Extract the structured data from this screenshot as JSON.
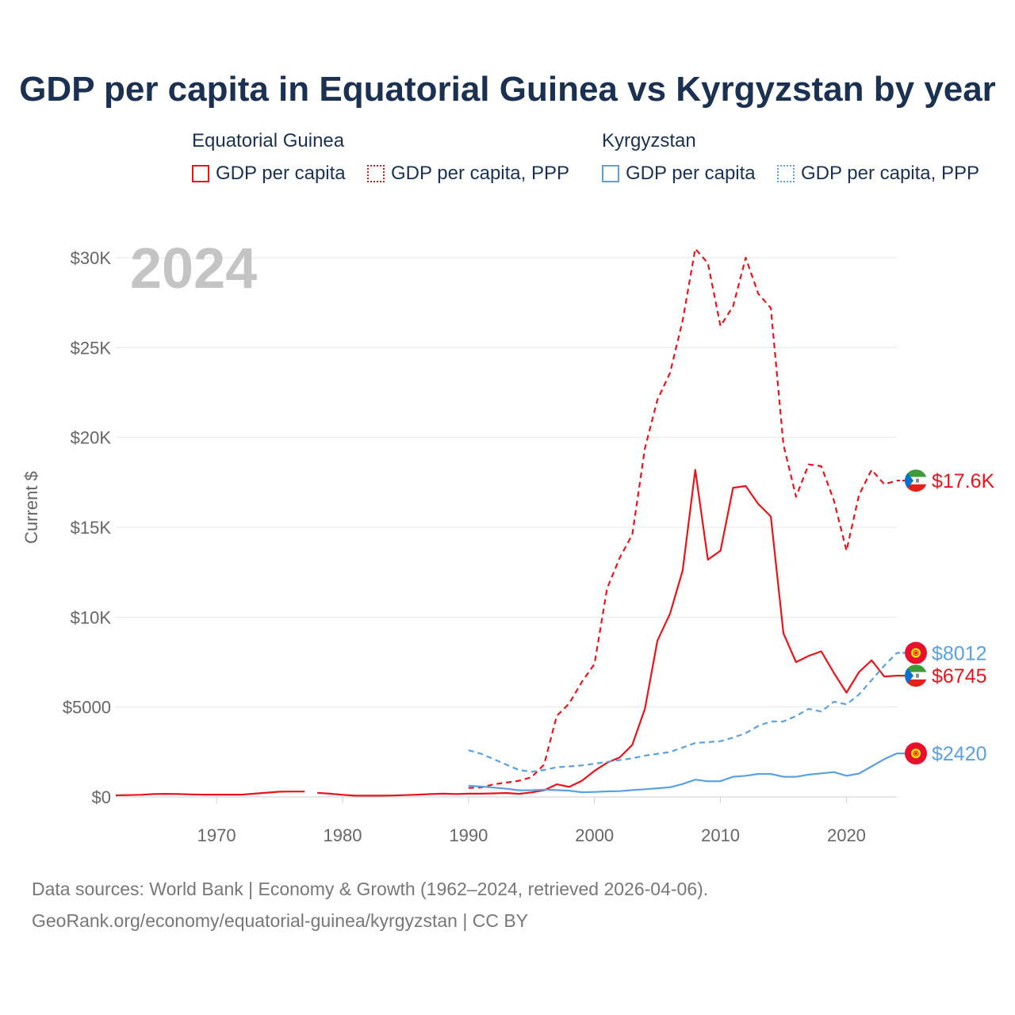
{
  "title": "GDP per capita in Equatorial Guinea vs Kyrgyzstan by year",
  "legend": {
    "groups": [
      {
        "country": "Equatorial Guinea",
        "color": "#e8141c",
        "items": [
          {
            "label": "GDP per capita",
            "style": "solid"
          },
          {
            "label": "GDP per capita, PPP",
            "style": "dotted"
          }
        ]
      },
      {
        "country": "Kyrgyzstan",
        "color": "#5ba0e0",
        "items": [
          {
            "label": "GDP per capita",
            "style": "solid"
          },
          {
            "label": "GDP per capita, PPP",
            "style": "dotted"
          }
        ]
      }
    ]
  },
  "year_label": "2024",
  "chart_data": {
    "type": "line",
    "title": "GDP per capita in Equatorial Guinea vs Kyrgyzstan by year",
    "xlabel": "",
    "ylabel": "Current $",
    "xlim": [
      1962,
      2024
    ],
    "ylim": [
      0,
      30000
    ],
    "x_ticks": [
      1970,
      1980,
      1990,
      2000,
      2010,
      2020
    ],
    "y_ticks": [
      0,
      5000,
      10000,
      15000,
      20000,
      25000,
      30000
    ],
    "y_tick_labels": [
      "$0",
      "$5000",
      "$10K",
      "$15K",
      "$20K",
      "$25K",
      "$30K"
    ],
    "grid": true,
    "series": [
      {
        "name": "Equatorial Guinea — GDP per capita",
        "country": "Equatorial Guinea",
        "color": "#e8141c",
        "dash": "solid",
        "end_label": "$6745",
        "flag": "equatorial-guinea",
        "points": [
          [
            1962,
            90
          ],
          [
            1963,
            100
          ],
          [
            1964,
            120
          ],
          [
            1965,
            160
          ],
          [
            1966,
            170
          ],
          [
            1967,
            160
          ],
          [
            1968,
            140
          ],
          [
            1969,
            130
          ],
          [
            1970,
            130
          ],
          [
            1971,
            130
          ],
          [
            1972,
            130
          ],
          [
            1973,
            180
          ],
          [
            1974,
            240
          ],
          [
            1975,
            290
          ],
          [
            1976,
            300
          ],
          [
            1977,
            300
          ],
          [
            null,
            null
          ],
          [
            1978,
            230
          ],
          [
            1979,
            180
          ],
          [
            1980,
            120
          ],
          [
            1981,
            70
          ],
          [
            1982,
            70
          ],
          [
            1983,
            70
          ],
          [
            1984,
            80
          ],
          [
            1985,
            100
          ],
          [
            1986,
            130
          ],
          [
            1987,
            160
          ],
          [
            1988,
            180
          ],
          [
            1989,
            160
          ],
          [
            1990,
            180
          ],
          [
            1991,
            180
          ],
          [
            1992,
            200
          ],
          [
            1993,
            220
          ],
          [
            1994,
            170
          ],
          [
            1995,
            250
          ],
          [
            1996,
            370
          ],
          [
            1997,
            700
          ],
          [
            1998,
            560
          ],
          [
            1999,
            900
          ],
          [
            2000,
            1450
          ],
          [
            2001,
            1900
          ],
          [
            2002,
            2200
          ],
          [
            2003,
            2900
          ],
          [
            2004,
            4900
          ],
          [
            2005,
            8700
          ],
          [
            2006,
            10200
          ],
          [
            2007,
            12600
          ],
          [
            2008,
            18200
          ],
          [
            2009,
            13200
          ],
          [
            2010,
            13700
          ],
          [
            2011,
            17200
          ],
          [
            2012,
            17300
          ],
          [
            2013,
            16300
          ],
          [
            2014,
            15600
          ],
          [
            2015,
            9100
          ],
          [
            2016,
            7500
          ],
          [
            2017,
            7850
          ],
          [
            2018,
            8100
          ],
          [
            2019,
            6900
          ],
          [
            2020,
            5800
          ],
          [
            2021,
            6950
          ],
          [
            2022,
            7600
          ],
          [
            2023,
            6700
          ],
          [
            2024,
            6745
          ]
        ]
      },
      {
        "name": "Equatorial Guinea — GDP per capita, PPP",
        "country": "Equatorial Guinea",
        "color": "#e8141c",
        "dash": "dashed",
        "end_label": "$17.6K",
        "flag": "equatorial-guinea",
        "points": [
          [
            1990,
            500
          ],
          [
            1991,
            530
          ],
          [
            1992,
            700
          ],
          [
            1993,
            800
          ],
          [
            1994,
            900
          ],
          [
            1995,
            1100
          ],
          [
            1996,
            1800
          ],
          [
            1997,
            4500
          ],
          [
            1998,
            5200
          ],
          [
            1999,
            6400
          ],
          [
            2000,
            7400
          ],
          [
            2001,
            11600
          ],
          [
            2002,
            13300
          ],
          [
            2003,
            14600
          ],
          [
            2004,
            19400
          ],
          [
            2005,
            22100
          ],
          [
            2006,
            23600
          ],
          [
            2007,
            26500
          ],
          [
            2008,
            30500
          ],
          [
            2009,
            29700
          ],
          [
            2010,
            26200
          ],
          [
            2011,
            27300
          ],
          [
            2012,
            30000
          ],
          [
            2013,
            28000
          ],
          [
            2014,
            27200
          ],
          [
            2015,
            19600
          ],
          [
            2016,
            16700
          ],
          [
            2017,
            18500
          ],
          [
            2018,
            18400
          ],
          [
            2019,
            16500
          ],
          [
            2020,
            13700
          ],
          [
            2021,
            16800
          ],
          [
            2022,
            18200
          ],
          [
            2023,
            17400
          ],
          [
            2024,
            17600
          ]
        ]
      },
      {
        "name": "Kyrgyzstan — GDP per capita",
        "country": "Kyrgyzstan",
        "color": "#5ba0e0",
        "dash": "solid",
        "end_label": "$2420",
        "flag": "kyrgyzstan",
        "points": [
          [
            1990,
            620
          ],
          [
            1991,
            580
          ],
          [
            1992,
            520
          ],
          [
            1993,
            460
          ],
          [
            1994,
            370
          ],
          [
            1995,
            370
          ],
          [
            1996,
            400
          ],
          [
            1997,
            380
          ],
          [
            1998,
            350
          ],
          [
            1999,
            260
          ],
          [
            2000,
            280
          ],
          [
            2001,
            310
          ],
          [
            2002,
            320
          ],
          [
            2003,
            380
          ],
          [
            2004,
            430
          ],
          [
            2005,
            480
          ],
          [
            2006,
            540
          ],
          [
            2007,
            720
          ],
          [
            2008,
            960
          ],
          [
            2009,
            870
          ],
          [
            2010,
            880
          ],
          [
            2011,
            1120
          ],
          [
            2012,
            1180
          ],
          [
            2013,
            1280
          ],
          [
            2014,
            1280
          ],
          [
            2015,
            1120
          ],
          [
            2016,
            1120
          ],
          [
            2017,
            1240
          ],
          [
            2018,
            1310
          ],
          [
            2019,
            1380
          ],
          [
            2020,
            1180
          ],
          [
            2021,
            1300
          ],
          [
            2022,
            1700
          ],
          [
            2023,
            2100
          ],
          [
            2024,
            2420
          ]
        ]
      },
      {
        "name": "Kyrgyzstan — GDP per capita, PPP",
        "country": "Kyrgyzstan",
        "color": "#5ba0e0",
        "dash": "dashed",
        "end_label": "$8012",
        "flag": "kyrgyzstan",
        "points": [
          [
            1990,
            2600
          ],
          [
            1991,
            2400
          ],
          [
            1992,
            2100
          ],
          [
            1993,
            1800
          ],
          [
            1994,
            1500
          ],
          [
            1995,
            1400
          ],
          [
            1996,
            1500
          ],
          [
            1997,
            1650
          ],
          [
            1998,
            1700
          ],
          [
            1999,
            1750
          ],
          [
            2000,
            1850
          ],
          [
            2001,
            1950
          ],
          [
            2002,
            2050
          ],
          [
            2003,
            2150
          ],
          [
            2004,
            2300
          ],
          [
            2005,
            2400
          ],
          [
            2006,
            2500
          ],
          [
            2007,
            2750
          ],
          [
            2008,
            3000
          ],
          [
            2009,
            3050
          ],
          [
            2010,
            3100
          ],
          [
            2011,
            3300
          ],
          [
            2012,
            3550
          ],
          [
            2013,
            3950
          ],
          [
            2014,
            4200
          ],
          [
            2015,
            4200
          ],
          [
            2016,
            4500
          ],
          [
            2017,
            4900
          ],
          [
            2018,
            4750
          ],
          [
            2019,
            5300
          ],
          [
            2020,
            5150
          ],
          [
            2021,
            5700
          ],
          [
            2022,
            6500
          ],
          [
            2023,
            7300
          ],
          [
            2024,
            8012
          ]
        ]
      }
    ]
  },
  "footer": {
    "line1": "Data sources: World Bank | Economy & Growth (1962–2024, retrieved 2026-04-06).",
    "line2": "GeoRank.org/economy/equatorial-guinea/kyrgyzstan | CC BY"
  }
}
